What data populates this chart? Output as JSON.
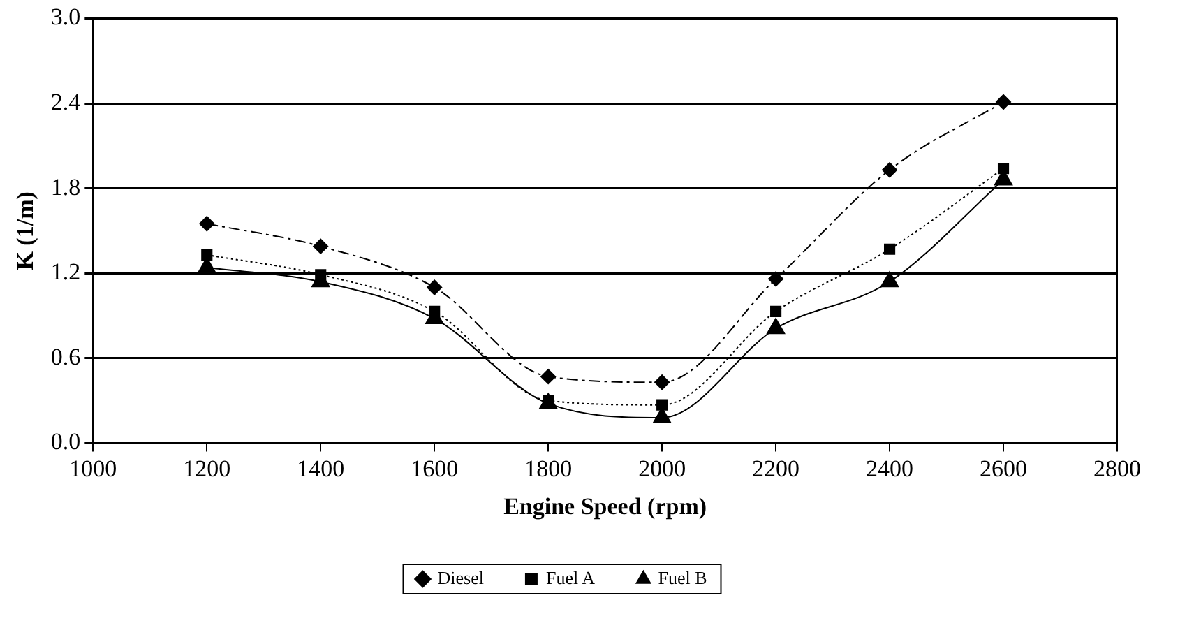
{
  "chart_data": {
    "type": "line",
    "xlabel": "Engine Speed (rpm)",
    "ylabel": "K (1/m)",
    "x": [
      1200,
      1400,
      1600,
      1800,
      2000,
      2200,
      2400,
      2600
    ],
    "series": [
      {
        "name": "Diesel",
        "color": "#000000",
        "marker": "diamond",
        "line_style": "dashdot",
        "values": [
          1.55,
          1.39,
          1.1,
          0.47,
          0.43,
          1.16,
          1.93,
          2.41
        ]
      },
      {
        "name": "Fuel A",
        "color": "#000000",
        "marker": "square",
        "line_style": "dotted",
        "values": [
          1.33,
          1.19,
          0.93,
          0.3,
          0.27,
          0.93,
          1.37,
          1.94
        ]
      },
      {
        "name": "Fuel B",
        "color": "#000000",
        "marker": "triangle",
        "line_style": "solid",
        "values": [
          1.24,
          1.14,
          0.88,
          0.28,
          0.18,
          0.81,
          1.14,
          1.86
        ]
      }
    ],
    "xlim": [
      1000,
      2800
    ],
    "xticks": [
      1000,
      1200,
      1400,
      1600,
      1800,
      2000,
      2200,
      2400,
      2600,
      2800
    ],
    "ylim": [
      0,
      3
    ],
    "yticks": [
      {
        "value": 0,
        "label": "0.0"
      },
      {
        "value": 0.6,
        "label": "0.6"
      },
      {
        "value": 1.2,
        "label": "1.2"
      },
      {
        "value": 1.8,
        "label": "1.8"
      },
      {
        "value": 2.4,
        "label": "2.4"
      },
      {
        "value": 3,
        "label": "3.0"
      }
    ],
    "grid": "y",
    "legend": "bottom"
  }
}
